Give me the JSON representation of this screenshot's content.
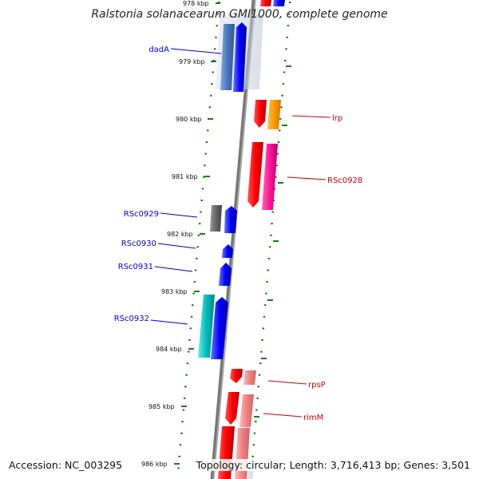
{
  "title": "Ralstonia solanacearum GMI1000, complete genome",
  "accession_label": "Accession:",
  "accession": "NC_003295",
  "topology_text": "Topology: circular; Length: 3,716,413 bp; Genes: 3,501",
  "kbp_labels": [
    "978 kbp",
    "979 kbp",
    "980 kbp",
    "981 kbp",
    "982 kbp",
    "983 kbp",
    "984 kbp",
    "985 kbp",
    "986 kbp"
  ],
  "genes": [
    {
      "name": "dadA",
      "strand": "minus",
      "color": "#0000cc"
    },
    {
      "name": "RSc0929",
      "strand": "minus",
      "color": "#0000cc"
    },
    {
      "name": "RSc0930",
      "strand": "minus",
      "color": "#0000cc"
    },
    {
      "name": "RSc0931",
      "strand": "minus",
      "color": "#0000cc"
    },
    {
      "name": "RSc0932",
      "strand": "minus",
      "color": "#0000cc"
    },
    {
      "name": "lrp",
      "strand": "plus",
      "color": "#cc0000"
    },
    {
      "name": "RSc0928",
      "strand": "plus",
      "color": "#cc0000"
    },
    {
      "name": "rpsP",
      "strand": "plus",
      "color": "#cc0000"
    },
    {
      "name": "rimM",
      "strand": "plus",
      "color": "#cc0000"
    }
  ],
  "colors": {
    "minus_strand_gene": "#0000ff",
    "plus_strand_gene": "#ff0000",
    "backbone": "#777777",
    "tick_dots": "#1a7a1a"
  }
}
